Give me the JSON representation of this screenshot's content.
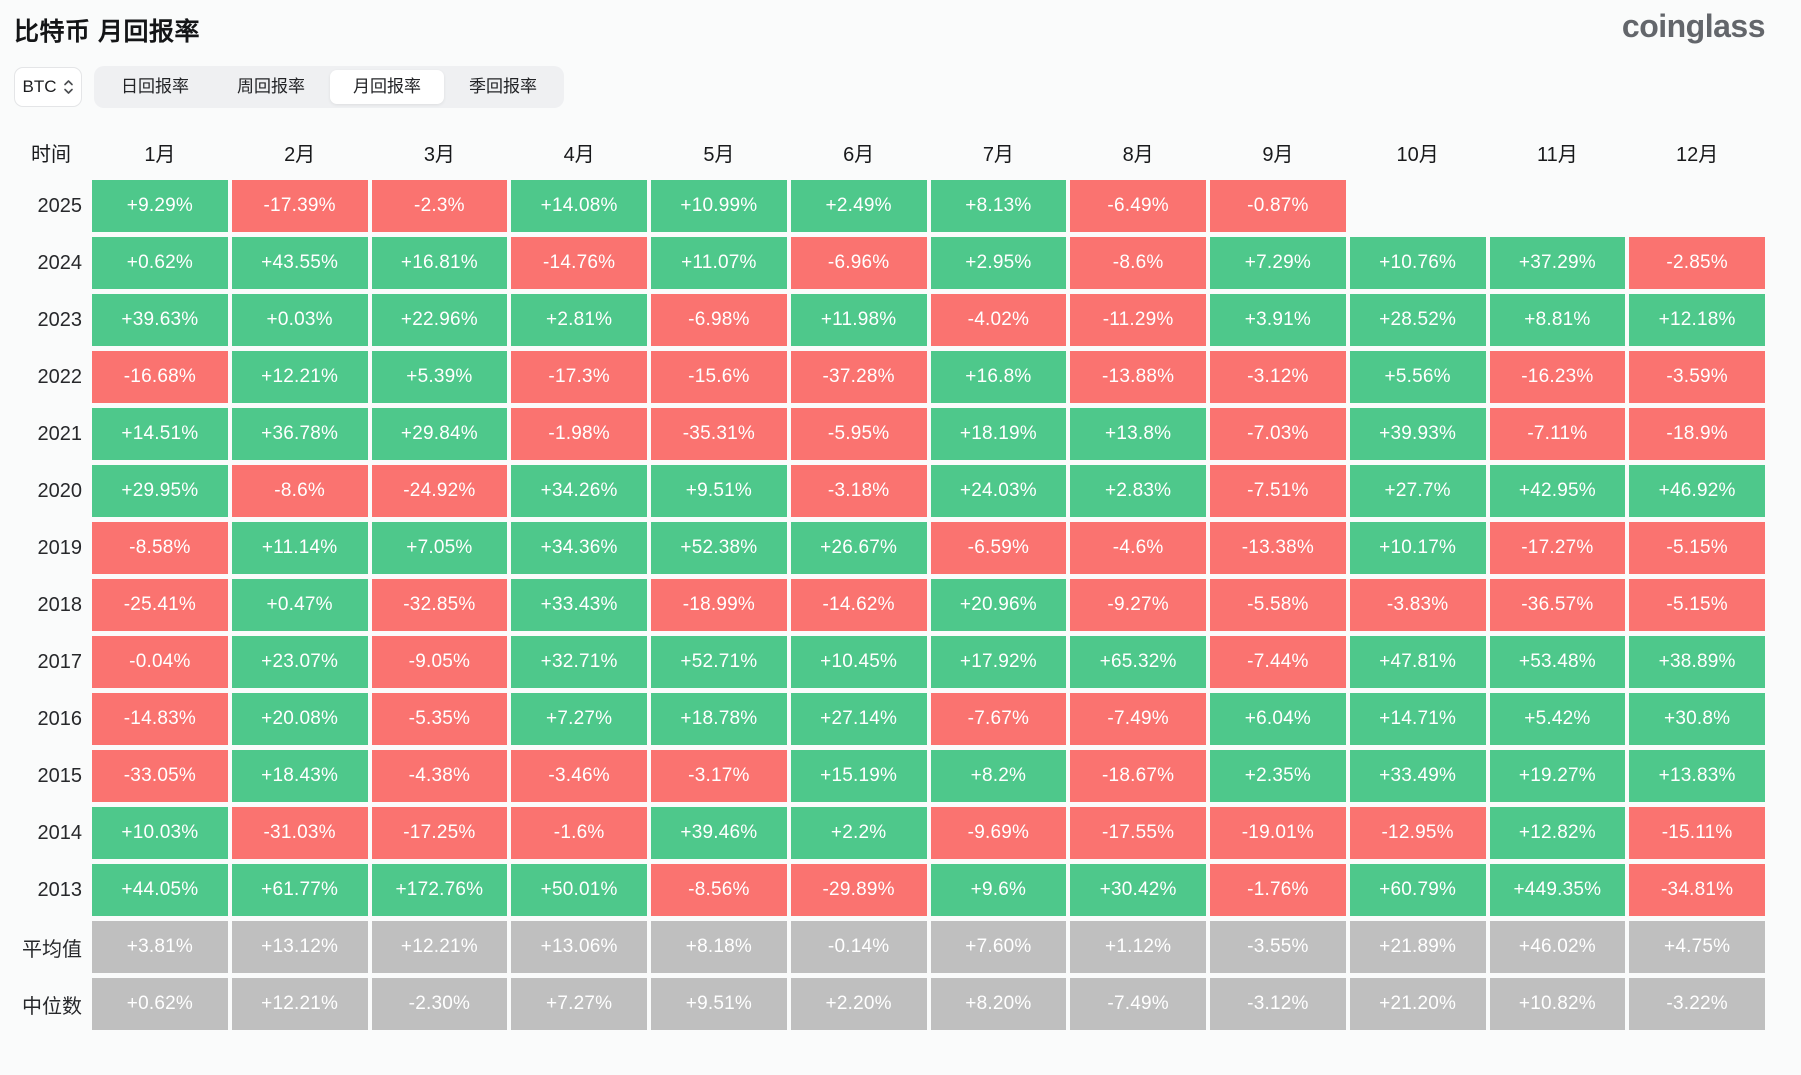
{
  "page": {
    "title": "比特币 月回报率",
    "logo": "coinglass"
  },
  "controls": {
    "coin_selector": {
      "value": "BTC"
    },
    "tabs": [
      {
        "label": "日回报率",
        "active": false
      },
      {
        "label": "周回报率",
        "active": false
      },
      {
        "label": "月回报率",
        "active": true
      },
      {
        "label": "季回报率",
        "active": false
      }
    ]
  },
  "colors": {
    "green": "#4ec88b",
    "red": "#fa7370",
    "gray": "#bfbfbf"
  },
  "chart_data": {
    "type": "heatmap",
    "title": "比特币 月回报率",
    "columns": [
      "时间",
      "1月",
      "2月",
      "3月",
      "4月",
      "5月",
      "6月",
      "7月",
      "8月",
      "9月",
      "10月",
      "11月",
      "12月"
    ],
    "rows": [
      {
        "label": "2025",
        "type": "year",
        "values": [
          "+9.29%",
          "-17.39%",
          "-2.3%",
          "+14.08%",
          "+10.99%",
          "+2.49%",
          "+8.13%",
          "-6.49%",
          "-0.87%",
          "",
          "",
          ""
        ]
      },
      {
        "label": "2024",
        "type": "year",
        "values": [
          "+0.62%",
          "+43.55%",
          "+16.81%",
          "-14.76%",
          "+11.07%",
          "-6.96%",
          "+2.95%",
          "-8.6%",
          "+7.29%",
          "+10.76%",
          "+37.29%",
          "-2.85%"
        ]
      },
      {
        "label": "2023",
        "type": "year",
        "values": [
          "+39.63%",
          "+0.03%",
          "+22.96%",
          "+2.81%",
          "-6.98%",
          "+11.98%",
          "-4.02%",
          "-11.29%",
          "+3.91%",
          "+28.52%",
          "+8.81%",
          "+12.18%"
        ]
      },
      {
        "label": "2022",
        "type": "year",
        "values": [
          "-16.68%",
          "+12.21%",
          "+5.39%",
          "-17.3%",
          "-15.6%",
          "-37.28%",
          "+16.8%",
          "-13.88%",
          "-3.12%",
          "+5.56%",
          "-16.23%",
          "-3.59%"
        ]
      },
      {
        "label": "2021",
        "type": "year",
        "values": [
          "+14.51%",
          "+36.78%",
          "+29.84%",
          "-1.98%",
          "-35.31%",
          "-5.95%",
          "+18.19%",
          "+13.8%",
          "-7.03%",
          "+39.93%",
          "-7.11%",
          "-18.9%"
        ]
      },
      {
        "label": "2020",
        "type": "year",
        "values": [
          "+29.95%",
          "-8.6%",
          "-24.92%",
          "+34.26%",
          "+9.51%",
          "-3.18%",
          "+24.03%",
          "+2.83%",
          "-7.51%",
          "+27.7%",
          "+42.95%",
          "+46.92%"
        ]
      },
      {
        "label": "2019",
        "type": "year",
        "values": [
          "-8.58%",
          "+11.14%",
          "+7.05%",
          "+34.36%",
          "+52.38%",
          "+26.67%",
          "-6.59%",
          "-4.6%",
          "-13.38%",
          "+10.17%",
          "-17.27%",
          "-5.15%"
        ]
      },
      {
        "label": "2018",
        "type": "year",
        "values": [
          "-25.41%",
          "+0.47%",
          "-32.85%",
          "+33.43%",
          "-18.99%",
          "-14.62%",
          "+20.96%",
          "-9.27%",
          "-5.58%",
          "-3.83%",
          "-36.57%",
          "-5.15%"
        ]
      },
      {
        "label": "2017",
        "type": "year",
        "values": [
          "-0.04%",
          "+23.07%",
          "-9.05%",
          "+32.71%",
          "+52.71%",
          "+10.45%",
          "+17.92%",
          "+65.32%",
          "-7.44%",
          "+47.81%",
          "+53.48%",
          "+38.89%"
        ]
      },
      {
        "label": "2016",
        "type": "year",
        "values": [
          "-14.83%",
          "+20.08%",
          "-5.35%",
          "+7.27%",
          "+18.78%",
          "+27.14%",
          "-7.67%",
          "-7.49%",
          "+6.04%",
          "+14.71%",
          "+5.42%",
          "+30.8%"
        ]
      },
      {
        "label": "2015",
        "type": "year",
        "values": [
          "-33.05%",
          "+18.43%",
          "-4.38%",
          "-3.46%",
          "-3.17%",
          "+15.19%",
          "+8.2%",
          "-18.67%",
          "+2.35%",
          "+33.49%",
          "+19.27%",
          "+13.83%"
        ]
      },
      {
        "label": "2014",
        "type": "year",
        "values": [
          "+10.03%",
          "-31.03%",
          "-17.25%",
          "-1.6%",
          "+39.46%",
          "+2.2%",
          "-9.69%",
          "-17.55%",
          "-19.01%",
          "-12.95%",
          "+12.82%",
          "-15.11%"
        ]
      },
      {
        "label": "2013",
        "type": "year",
        "values": [
          "+44.05%",
          "+61.77%",
          "+172.76%",
          "+50.01%",
          "-8.56%",
          "-29.89%",
          "+9.6%",
          "+30.42%",
          "-1.76%",
          "+60.79%",
          "+449.35%",
          "-34.81%"
        ]
      },
      {
        "label": "平均值",
        "type": "summary",
        "values": [
          "+3.81%",
          "+13.12%",
          "+12.21%",
          "+13.06%",
          "+8.18%",
          "-0.14%",
          "+7.60%",
          "+1.12%",
          "-3.55%",
          "+21.89%",
          "+46.02%",
          "+4.75%"
        ]
      },
      {
        "label": "中位数",
        "type": "summary",
        "values": [
          "+0.62%",
          "+12.21%",
          "-2.30%",
          "+7.27%",
          "+9.51%",
          "+2.20%",
          "+8.20%",
          "-7.49%",
          "-3.12%",
          "+21.20%",
          "+10.82%",
          "-3.22%"
        ]
      }
    ]
  }
}
